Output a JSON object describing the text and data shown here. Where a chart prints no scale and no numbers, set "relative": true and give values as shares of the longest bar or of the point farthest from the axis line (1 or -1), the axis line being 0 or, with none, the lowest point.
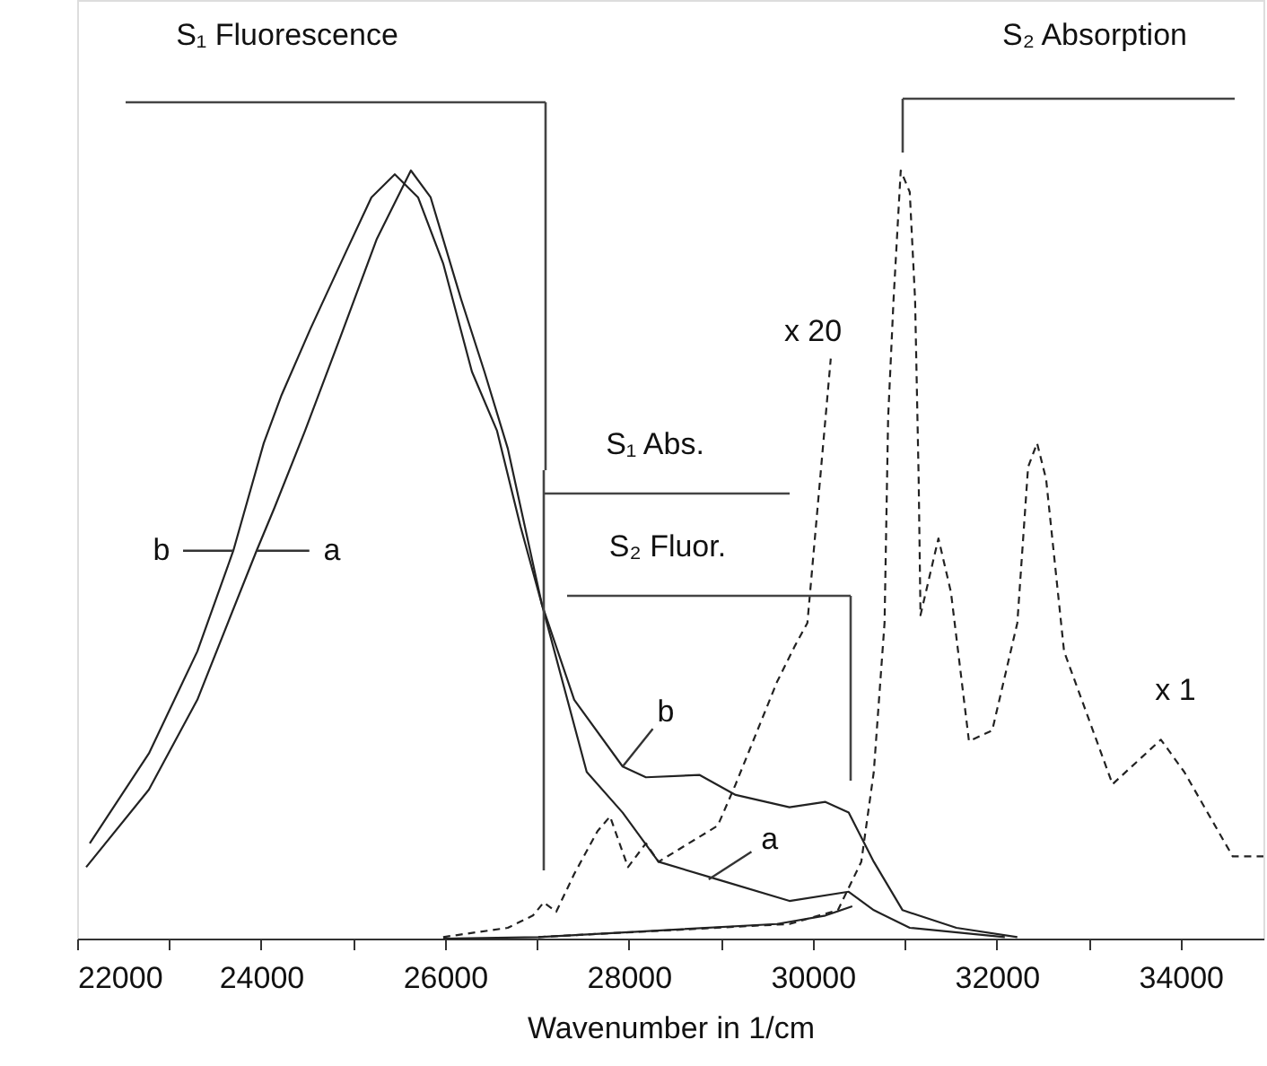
{
  "chart_data": {
    "type": "line",
    "relative": true,
    "xlabel": "Wavenumber in 1/cm",
    "xlim": [
      22000,
      34900
    ],
    "xticks": [
      22000,
      {
        "value": 23000,
        "label": null
      },
      24000,
      {
        "value": 25000,
        "label": null
      },
      26000,
      {
        "value": 27000,
        "label": null
      },
      28000,
      {
        "value": 29000,
        "label": null
      },
      30000,
      {
        "value": 31000,
        "label": null
      },
      32000,
      {
        "value": 33000,
        "label": null
      },
      34000
    ],
    "grid": false,
    "tick_labels": "x",
    "marker": "none",
    "series": [
      {
        "color": "#222222",
        "line_style": "solid",
        "x": [
          22137,
          22780,
          23307,
          23698,
          24029,
          24224,
          24537,
          24927,
          25200,
          25454,
          25707,
          25980,
          26293,
          26566,
          26820,
          27054,
          27405,
          27932,
          28185,
          28770,
          29161,
          29746,
          30137,
          30390,
          30663,
          30976,
          31561,
          32224
        ],
        "values": [
          0.124,
          0.241,
          0.374,
          0.505,
          0.645,
          0.708,
          0.794,
          0.895,
          0.965,
          0.995,
          0.965,
          0.879,
          0.738,
          0.661,
          0.537,
          0.435,
          0.311,
          0.224,
          0.21,
          0.213,
          0.187,
          0.171,
          0.178,
          0.164,
          0.1,
          0.037,
          0.014,
          0.002
        ]
      },
      {
        "color": "#222222",
        "line_style": "solid",
        "x": [
          22098,
          22780,
          23307,
          23951,
          24146,
          24478,
          24868,
          25259,
          25629,
          25844,
          26176,
          26429,
          26683,
          27054,
          27541,
          27932,
          28322,
          28966,
          29746,
          30390,
          30663,
          31054,
          32088
        ],
        "values": [
          0.093,
          0.194,
          0.311,
          0.505,
          0.561,
          0.661,
          0.785,
          0.911,
          1.0,
          0.965,
          0.832,
          0.738,
          0.638,
          0.435,
          0.217,
          0.164,
          0.1,
          0.077,
          0.049,
          0.061,
          0.037,
          0.014,
          0.002
        ]
      },
      {
        "color": "#222222",
        "line_style": "solid",
        "x": [
          25980,
          27015,
          29610,
          30137,
          30429
        ],
        "values": [
          0.0,
          0.002,
          0.019,
          0.03,
          0.042
        ]
      },
      {
        "color": "#222222",
        "line_style": "dashed",
        "x": [
          25980,
          26683,
          26956,
          27073,
          27210,
          27405,
          27659,
          27795,
          27990,
          28185,
          28322,
          28966,
          29161,
          29610,
          29805,
          29941,
          30000,
          30195
        ],
        "values": [
          0.002,
          0.014,
          0.03,
          0.047,
          0.035,
          0.084,
          0.14,
          0.159,
          0.093,
          0.124,
          0.1,
          0.147,
          0.201,
          0.334,
          0.381,
          0.411,
          0.491,
          0.755
        ]
      },
      {
        "color": "#222222",
        "line_style": "dashed",
        "x": [
          27015,
          29746,
          30273,
          30527,
          30663,
          30780,
          30819,
          30878,
          30956,
          31054,
          31112,
          31151,
          31171,
          31307,
          31366,
          31502,
          31698,
          31951,
          32224,
          32341,
          32439,
          32537,
          32732,
          33259,
          33785,
          34039,
          34566,
          34900
        ],
        "values": [
          0.002,
          0.019,
          0.037,
          0.1,
          0.217,
          0.411,
          0.678,
          0.832,
          1.0,
          0.972,
          0.832,
          0.598,
          0.421,
          0.491,
          0.521,
          0.451,
          0.257,
          0.271,
          0.411,
          0.614,
          0.645,
          0.598,
          0.374,
          0.201,
          0.259,
          0.217,
          0.107,
          0.107
        ]
      }
    ],
    "annotations": [
      "S₁ Fluorescence",
      "S₂ Absorption",
      "S₁ Abs.",
      "S₂ Fluor.",
      "x 20",
      "x 1",
      {
        "text": "b",
        "x": 23698,
        "y": 0.505
      },
      {
        "text": "a",
        "x": 23951,
        "y": 0.505
      },
      {
        "text": "b",
        "x": 27932,
        "y": 0.224
      },
      {
        "text": "a",
        "x": 28868,
        "y": 0.077
      }
    ]
  }
}
